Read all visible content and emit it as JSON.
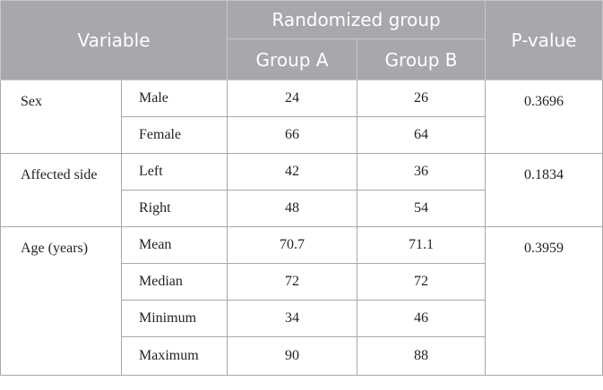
{
  "header": {
    "variable": "Variable",
    "randomized_group": "Randomized group",
    "p_value": "P-value",
    "group_a": "Group A",
    "group_b": "Group B"
  },
  "rows": {
    "sex": {
      "label": "Sex",
      "p_value": "0.3696",
      "levels": [
        {
          "label": "Male",
          "group_a": "24",
          "group_b": "26"
        },
        {
          "label": "Female",
          "group_a": "66",
          "group_b": "64"
        }
      ]
    },
    "affected_side": {
      "label": "Affected side",
      "p_value": "0.1834",
      "levels": [
        {
          "label": "Left",
          "group_a": "42",
          "group_b": "36"
        },
        {
          "label": "Right",
          "group_a": "48",
          "group_b": "54"
        }
      ]
    },
    "age": {
      "label": "Age (years)",
      "p_value": "0.3959",
      "levels": [
        {
          "label": "Mean",
          "group_a": "70.7",
          "group_b": "71.1"
        },
        {
          "label": "Median",
          "group_a": "72",
          "group_b": "72"
        },
        {
          "label": "Minimum",
          "group_a": "34",
          "group_b": "46"
        },
        {
          "label": "Maximum",
          "group_a": "90",
          "group_b": "88"
        }
      ]
    }
  }
}
